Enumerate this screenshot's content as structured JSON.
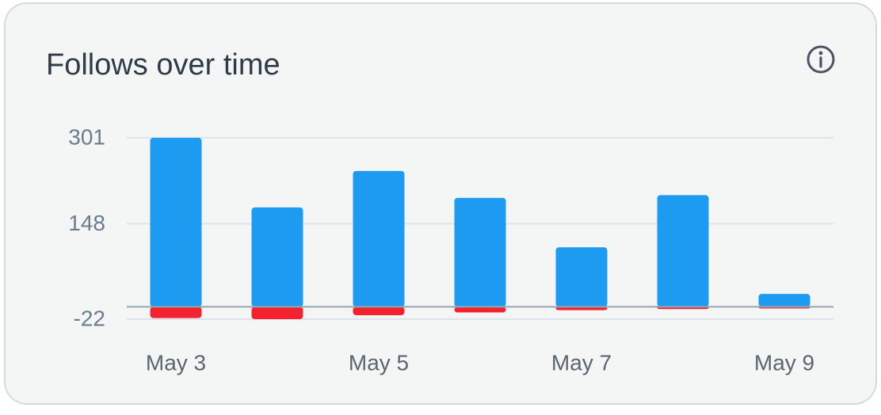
{
  "chart_data": {
    "type": "bar",
    "title": "Follows over time",
    "categories": [
      "May 3",
      null,
      "May 5",
      null,
      "May 7",
      null,
      "May 9"
    ],
    "series": [
      {
        "color": "#1d9bf0",
        "values": [
          301,
          177,
          242,
          194,
          106,
          199,
          23
        ]
      },
      {
        "color": "#f4212e",
        "values": [
          -20,
          -22,
          -15,
          -10,
          -6,
          -4,
          -3
        ]
      }
    ],
    "ylim": [
      -22,
      301
    ],
    "yticks": [
      -22,
      148,
      301
    ],
    "grid": true
  }
}
